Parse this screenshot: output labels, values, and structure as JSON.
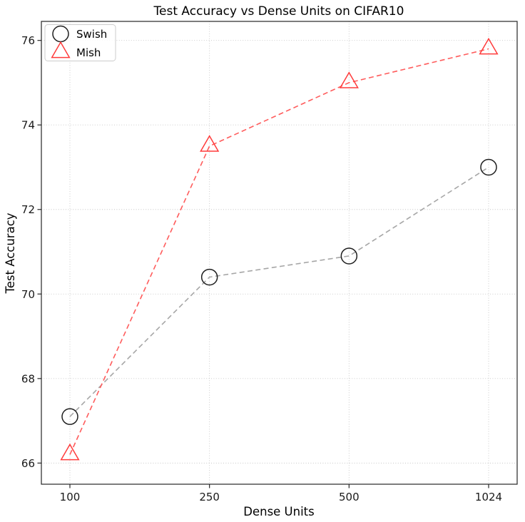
{
  "figure": {
    "background": "#ffffff",
    "spine_color": "#262626",
    "grid_color": "#c6c6c6",
    "tick_label_color": "#1a1a1a",
    "text_color": "#000000"
  },
  "chart_data": {
    "type": "line",
    "title": "Test Accuracy vs Dense Units on CIFAR10",
    "xlabel": "Dense Units",
    "ylabel": "Test Accuracy",
    "categories": [
      "100",
      "250",
      "500",
      "1024"
    ],
    "x_equally_spaced": true,
    "yticks": [
      66,
      68,
      70,
      72,
      74,
      76
    ],
    "ytick_labels": [
      "66",
      "68",
      "70",
      "72",
      "74",
      "76"
    ],
    "ylim": [
      65.5,
      76.45
    ],
    "grid": "dotted",
    "legend_position": "upper-left",
    "series": [
      {
        "name": "Swish",
        "values": [
          67.1,
          70.4,
          70.9,
          73.0
        ],
        "marker": "circle",
        "marker_color": "#1f1f1f",
        "line_color": "#a6a6a6",
        "line_style": "dashed"
      },
      {
        "name": "Mish",
        "values": [
          66.2,
          73.5,
          75.0,
          75.8
        ],
        "marker": "triangle-up",
        "marker_color": "#ff3b3b",
        "line_color": "#ff5c5c",
        "line_style": "dashed"
      }
    ]
  }
}
